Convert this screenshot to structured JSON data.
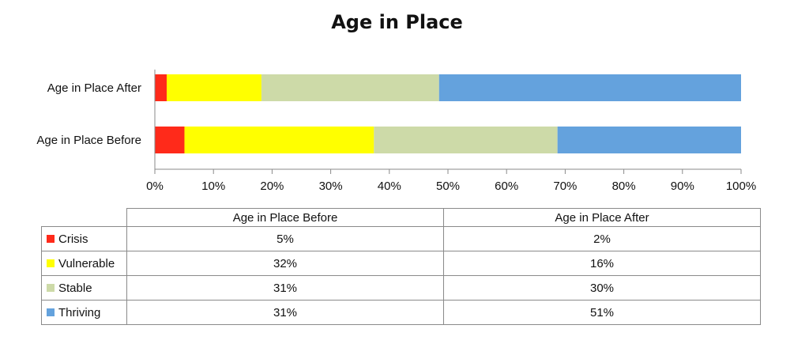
{
  "chart_data": {
    "type": "bar",
    "orientation": "horizontal",
    "stacked": true,
    "normalized": true,
    "title": "Age in Place",
    "categories": [
      "Age in Place After",
      "Age in Place Before"
    ],
    "series": [
      {
        "name": "Crisis",
        "color": "#ff2a1a",
        "values": [
          2,
          5
        ]
      },
      {
        "name": "Vulnerable",
        "color": "#ffff00",
        "values": [
          16,
          32
        ]
      },
      {
        "name": "Stable",
        "color": "#cddaa8",
        "values": [
          30,
          31
        ]
      },
      {
        "name": "Thriving",
        "color": "#64a2dd",
        "values": [
          51,
          31
        ]
      }
    ],
    "xlim": [
      0,
      100
    ],
    "xticks": [
      "0%",
      "10%",
      "20%",
      "30%",
      "40%",
      "50%",
      "60%",
      "70%",
      "80%",
      "90%",
      "100%"
    ],
    "grid": false,
    "legend": "data-table-below"
  },
  "table": {
    "columns": [
      "Age in Place Before",
      "Age in Place After"
    ],
    "rows": [
      {
        "label": "Crisis",
        "color": "#ff2a1a",
        "values": [
          "5%",
          "2%"
        ]
      },
      {
        "label": "Vulnerable",
        "color": "#ffff00",
        "values": [
          "32%",
          "16%"
        ]
      },
      {
        "label": "Stable",
        "color": "#cddaa8",
        "values": [
          "31%",
          "30%"
        ]
      },
      {
        "label": "Thriving",
        "color": "#64a2dd",
        "values": [
          "31%",
          "51%"
        ]
      }
    ]
  }
}
